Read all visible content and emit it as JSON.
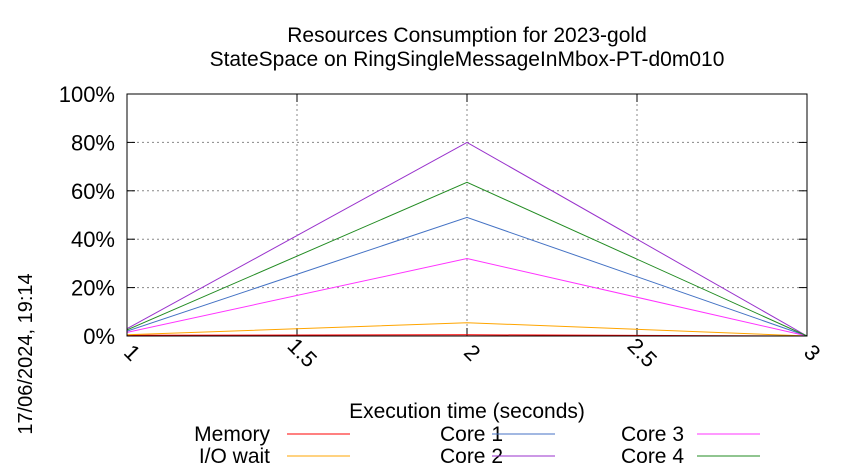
{
  "chart_data": {
    "type": "line",
    "title": "Resources Consumption for 2023-gold",
    "subtitle": "StateSpace on RingSingleMessageInMbox-PT-d0m010",
    "xlabel": "Execution time (seconds)",
    "ylabel": "",
    "timestamp": "17/06/2024, 19:14",
    "xlim": [
      1,
      3
    ],
    "ylim": [
      0,
      100
    ],
    "x_ticks": [
      "1",
      "1.5",
      "2",
      "2.5",
      "3"
    ],
    "x_tick_values": [
      1,
      1.5,
      2,
      2.5,
      3
    ],
    "y_ticks": [
      "0%",
      "20%",
      "40%",
      "60%",
      "80%",
      "100%"
    ],
    "y_tick_values": [
      0,
      20,
      40,
      60,
      80,
      100
    ],
    "grid": true,
    "legend_position": "bottom",
    "x": [
      1,
      2,
      3
    ],
    "series": [
      {
        "name": "Memory",
        "color": "#ff0000",
        "values": [
          0.3,
          0.5,
          0
        ]
      },
      {
        "name": "I/O wait",
        "color": "#ffa500",
        "values": [
          0.5,
          5.5,
          0
        ]
      },
      {
        "name": "Core 1",
        "color": "#4472c4",
        "values": [
          2,
          49,
          0
        ]
      },
      {
        "name": "Core 2",
        "color": "#9932cc",
        "values": [
          3,
          80,
          0
        ]
      },
      {
        "name": "Core 3",
        "color": "#ff33ff",
        "values": [
          1.5,
          32,
          0
        ]
      },
      {
        "name": "Core 4",
        "color": "#228b22",
        "values": [
          2.5,
          63.5,
          0
        ]
      }
    ]
  }
}
